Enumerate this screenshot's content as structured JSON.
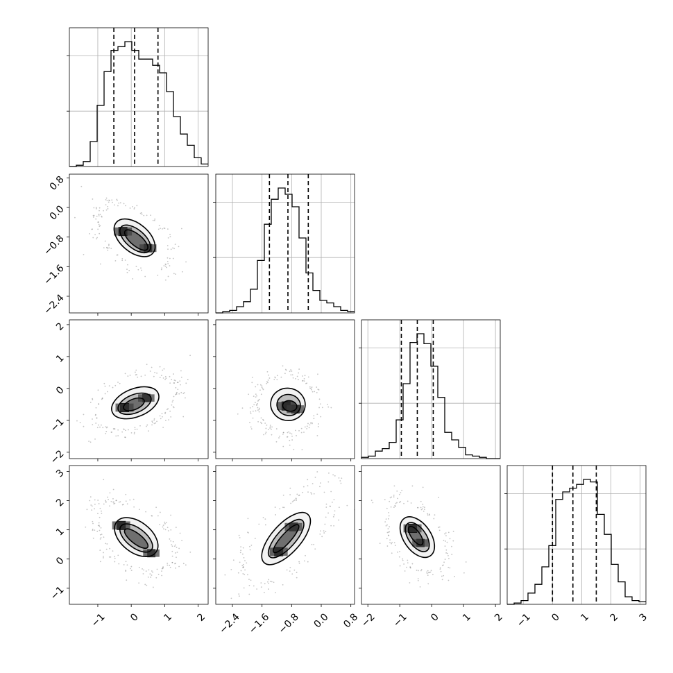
{
  "chart_data": {
    "type": "corner",
    "title": "",
    "n_params": 4,
    "params": [
      {
        "name": "",
        "range": [
          -1.85,
          2.3
        ],
        "ticks": [
          -1,
          0,
          1,
          2
        ],
        "tick_labels": [
          "-1",
          "0",
          "1",
          "2"
        ],
        "quantiles": [
          -0.52,
          0.1,
          0.8
        ],
        "hist_edges_start": -1.85,
        "hist_bin_width": 0.2075,
        "hist_counts": [
          0,
          0.01,
          0.04,
          0.2,
          0.49,
          0.76,
          0.93,
          0.96,
          1.0,
          0.93,
          0.86,
          0.86,
          0.81,
          0.75,
          0.6,
          0.4,
          0.26,
          0.17,
          0.07,
          0.02
        ]
      },
      {
        "name": "",
        "range": [
          -2.85,
          0.9
        ],
        "ticks": [
          -2.4,
          -1.6,
          -0.8,
          0.0,
          0.8
        ],
        "tick_labels": [
          "-2.4",
          "-1.6",
          "-0.8",
          "0.0",
          "0.8"
        ],
        "quantiles": [
          -1.4,
          -0.9,
          -0.35
        ],
        "hist_edges_start": -2.85,
        "hist_bin_width": 0.1875,
        "hist_counts": [
          0,
          0.01,
          0.02,
          0.05,
          0.09,
          0.19,
          0.42,
          0.71,
          0.91,
          1.0,
          0.95,
          0.85,
          0.6,
          0.32,
          0.18,
          0.1,
          0.08,
          0.05,
          0.02,
          0.01
        ]
      },
      {
        "name": "",
        "range": [
          -2.2,
          2.15
        ],
        "ticks": [
          -2,
          -1,
          0,
          1,
          2
        ],
        "tick_labels": [
          "-2",
          "-1",
          "0",
          "1",
          "2"
        ],
        "quantiles": [
          -0.95,
          -0.45,
          0.05
        ],
        "hist_edges_start": -2.2,
        "hist_bin_width": 0.2175,
        "hist_counts": [
          0.01,
          0.02,
          0.06,
          0.08,
          0.13,
          0.31,
          0.6,
          0.93,
          1.0,
          0.92,
          0.74,
          0.49,
          0.21,
          0.15,
          0.09,
          0.03,
          0.02,
          0.01,
          0.0,
          0.0
        ]
      },
      {
        "name": "",
        "range": [
          -1.55,
          3.2
        ],
        "ticks": [
          -1,
          0,
          1,
          2,
          3
        ],
        "tick_labels": [
          "-1",
          "0",
          "1",
          "2",
          "3"
        ],
        "quantiles": [
          0.0,
          0.7,
          1.5
        ],
        "hist_edges_start": -1.55,
        "hist_bin_width": 0.2375,
        "hist_counts": [
          0,
          0.01,
          0.03,
          0.09,
          0.16,
          0.3,
          0.47,
          0.84,
          0.9,
          0.93,
          0.96,
          1.0,
          0.98,
          0.72,
          0.56,
          0.32,
          0.18,
          0.06,
          0.03,
          0.02
        ]
      }
    ],
    "pairs": [
      {
        "x": 0,
        "y": 1,
        "peaks": [
          {
            "x": -0.25,
            "y": -0.65,
            "w": 1.0
          },
          {
            "x": 0.5,
            "y": -1.1,
            "w": 0.8
          }
        ],
        "contours": [
          {
            "level": "outer",
            "cx": 0.1,
            "cy": -0.82,
            "rx": 1.3,
            "ry": 0.7,
            "angle": -40
          },
          {
            "level": "mid",
            "cx": 0.12,
            "cy": -0.85,
            "rx": 1.0,
            "ry": 0.46,
            "angle": -40
          },
          {
            "level": "inner",
            "cx": 0.15,
            "cy": -0.88,
            "rx": 0.78,
            "ry": 0.28,
            "angle": -40
          }
        ]
      },
      {
        "x": 0,
        "y": 2,
        "peaks": [
          {
            "x": -0.2,
            "y": -0.6,
            "w": 1.0
          },
          {
            "x": 0.45,
            "y": -0.3,
            "w": 0.7
          }
        ],
        "contours": [
          {
            "level": "outer",
            "cx": 0.12,
            "cy": -0.45,
            "rx": 1.35,
            "ry": 0.8,
            "angle": 22
          },
          {
            "level": "mid",
            "cx": 0.1,
            "cy": -0.48,
            "rx": 0.95,
            "ry": 0.52,
            "angle": 22
          },
          {
            "level": "inner",
            "cx": 0.08,
            "cy": -0.5,
            "rx": 0.6,
            "ry": 0.3,
            "angle": 22
          }
        ]
      },
      {
        "x": 1,
        "y": 2,
        "peaks": [
          {
            "x": -0.95,
            "y": -0.55,
            "w": 1.0
          },
          {
            "x": -0.7,
            "y": -0.65,
            "w": 0.85
          }
        ],
        "contours": [
          {
            "level": "outer",
            "cx": -0.9,
            "cy": -0.5,
            "rx": 0.85,
            "ry": 0.92,
            "angle": -10
          },
          {
            "level": "mid",
            "cx": -0.88,
            "cy": -0.52,
            "rx": 0.58,
            "ry": 0.6,
            "angle": -10
          },
          {
            "level": "inner",
            "cx": -0.85,
            "cy": -0.55,
            "rx": 0.35,
            "ry": 0.3,
            "angle": -10
          }
        ]
      },
      {
        "x": 0,
        "y": 3,
        "peaks": [
          {
            "x": -0.3,
            "y": 1.15,
            "w": 1.0
          },
          {
            "x": 0.6,
            "y": 0.2,
            "w": 0.7
          }
        ],
        "contours": [
          {
            "level": "outer",
            "cx": 0.15,
            "cy": 0.75,
            "rx": 1.35,
            "ry": 0.95,
            "angle": -38
          },
          {
            "level": "mid",
            "cx": 0.15,
            "cy": 0.72,
            "rx": 1.05,
            "ry": 0.6,
            "angle": -38
          },
          {
            "level": "inner",
            "cx": 0.15,
            "cy": 0.7,
            "rx": 0.78,
            "ry": 0.32,
            "angle": -38
          }
        ]
      },
      {
        "x": 1,
        "y": 3,
        "peaks": [
          {
            "x": -1.15,
            "y": 0.25,
            "w": 1.0
          },
          {
            "x": -0.75,
            "y": 1.1,
            "w": 0.9
          }
        ],
        "contours": [
          {
            "level": "outer",
            "cx": -0.95,
            "cy": 0.7,
            "rx": 1.6,
            "ry": 0.9,
            "angle": 48
          },
          {
            "level": "mid",
            "cx": -0.95,
            "cy": 0.7,
            "rx": 1.2,
            "ry": 0.58,
            "angle": 48
          },
          {
            "level": "inner",
            "cx": -0.95,
            "cy": 0.7,
            "rx": 0.9,
            "ry": 0.3,
            "angle": 48
          }
        ]
      },
      {
        "x": 2,
        "y": 3,
        "peaks": [
          {
            "x": -0.6,
            "y": 1.05,
            "w": 1.0
          },
          {
            "x": -0.35,
            "y": 0.55,
            "w": 0.7
          }
        ],
        "contours": [
          {
            "level": "outer",
            "cx": -0.45,
            "cy": 0.75,
            "rx": 1.3,
            "ry": 0.85,
            "angle": -55
          },
          {
            "level": "mid",
            "cx": -0.45,
            "cy": 0.75,
            "rx": 0.95,
            "ry": 0.55,
            "angle": -55
          },
          {
            "level": "inner",
            "cx": -0.5,
            "cy": 0.8,
            "rx": 0.62,
            "ry": 0.28,
            "angle": -55
          }
        ]
      }
    ],
    "grid": true,
    "quantile_lines": "dashed"
  }
}
